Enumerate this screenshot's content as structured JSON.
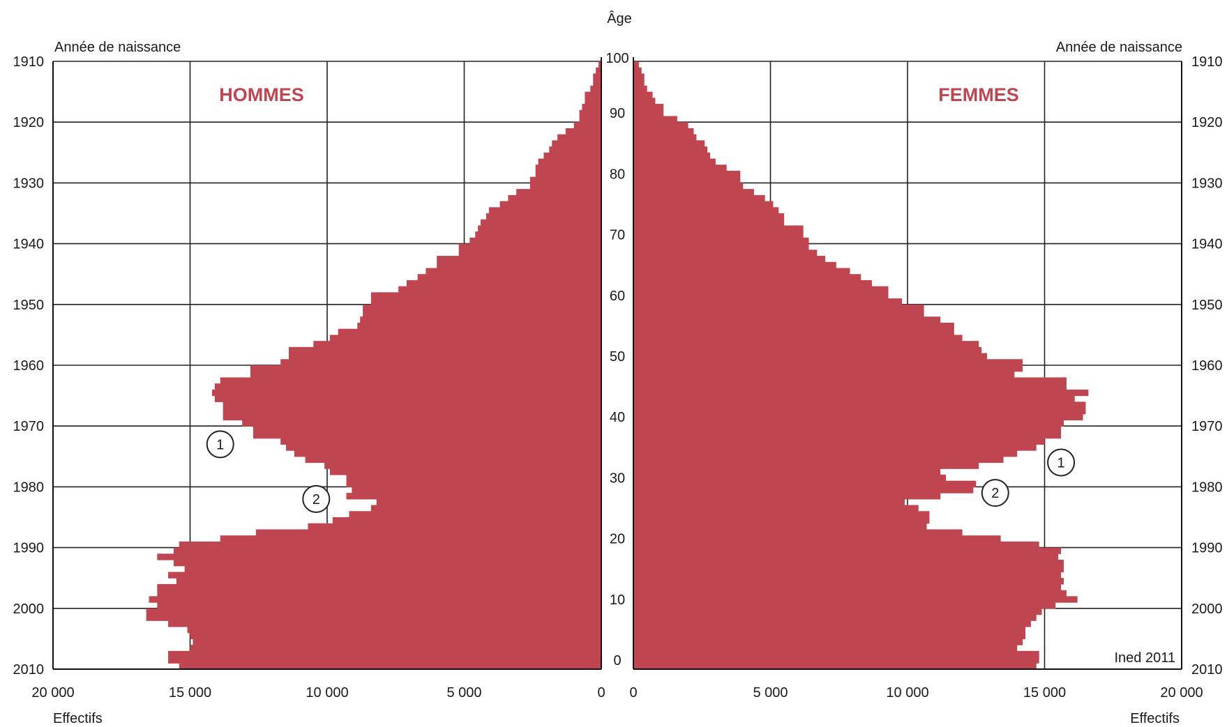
{
  "chart_data": {
    "type": "bar",
    "subtype": "population-pyramid",
    "age_label": "Âge",
    "birth_year_label": "Année de naissance",
    "count_label": "Effectifs",
    "source": "Ined 2011",
    "color": "#bf4650",
    "age_range": [
      0,
      100
    ],
    "count_range": [
      0,
      20000
    ],
    "grid": true,
    "age_ticks": [
      "0",
      "10",
      "20",
      "30",
      "40",
      "50",
      "60",
      "70",
      "80",
      "90",
      "100"
    ],
    "year_ticks": [
      "1910",
      "1920",
      "1930",
      "1940",
      "1950",
      "1960",
      "1970",
      "1980",
      "1990",
      "2000",
      "2010"
    ],
    "male_ticks": [
      "20 000",
      "15 000",
      "10 000",
      "5 000",
      "0"
    ],
    "female_ticks": [
      "0",
      "5 000",
      "10 000",
      "15 000",
      "20 000"
    ],
    "ages": [
      0,
      1,
      2,
      3,
      4,
      5,
      6,
      7,
      8,
      9,
      10,
      11,
      12,
      13,
      14,
      15,
      16,
      17,
      18,
      19,
      20,
      21,
      22,
      23,
      24,
      25,
      26,
      27,
      28,
      29,
      30,
      31,
      32,
      33,
      34,
      35,
      36,
      37,
      38,
      39,
      40,
      41,
      42,
      43,
      44,
      45,
      46,
      47,
      48,
      49,
      50,
      51,
      52,
      53,
      54,
      55,
      56,
      57,
      58,
      59,
      60,
      61,
      62,
      63,
      64,
      65,
      66,
      67,
      68,
      69,
      70,
      71,
      72,
      73,
      74,
      75,
      76,
      77,
      78,
      79,
      80,
      81,
      82,
      83,
      84,
      85,
      86,
      87,
      88,
      89,
      90,
      91,
      92,
      93,
      94,
      95,
      96,
      97,
      98,
      99,
      100
    ],
    "series": [
      {
        "name": "HOMMES",
        "values": [
          15400,
          15800,
          15800,
          15000,
          14900,
          15000,
          15100,
          15800,
          16600,
          16600,
          16200,
          16500,
          16200,
          16200,
          15500,
          15800,
          15200,
          15600,
          16200,
          15600,
          15400,
          13900,
          12600,
          10700,
          9800,
          9200,
          8400,
          8200,
          9300,
          9100,
          9300,
          9300,
          9900,
          10100,
          10800,
          11200,
          11500,
          11700,
          12700,
          12700,
          13100,
          13800,
          13800,
          13800,
          14100,
          14200,
          14100,
          13900,
          12800,
          12800,
          11700,
          11400,
          11400,
          10500,
          9900,
          9600,
          8900,
          8800,
          8700,
          8700,
          8400,
          8400,
          7400,
          7100,
          6700,
          6400,
          6000,
          6000,
          5200,
          5200,
          4800,
          4600,
          4500,
          4400,
          4200,
          4100,
          3700,
          3400,
          3100,
          2600,
          2600,
          2400,
          2400,
          2300,
          2100,
          1900,
          1800,
          1600,
          1300,
          1000,
          800,
          800,
          700,
          600,
          600,
          400,
          300,
          300,
          200,
          100,
          0
        ]
      },
      {
        "name": "FEMMES",
        "values": [
          14700,
          14800,
          14800,
          14000,
          14200,
          14300,
          14300,
          14500,
          14700,
          14900,
          15400,
          16200,
          15800,
          15600,
          15700,
          15600,
          15700,
          15700,
          15500,
          15600,
          14800,
          13400,
          12000,
          10700,
          10800,
          10800,
          10400,
          9900,
          11200,
          12400,
          12500,
          11400,
          11200,
          12600,
          13500,
          14000,
          14700,
          15000,
          15600,
          15600,
          15700,
          16400,
          16500,
          16500,
          16100,
          16600,
          15800,
          15800,
          13900,
          14200,
          14200,
          12900,
          12700,
          12600,
          12000,
          11700,
          11700,
          11200,
          10600,
          10600,
          9800,
          9300,
          9300,
          8700,
          8300,
          7900,
          7400,
          7000,
          6700,
          6400,
          6400,
          6200,
          6200,
          5500,
          5500,
          5300,
          5100,
          4800,
          4400,
          4000,
          3900,
          3900,
          3400,
          3000,
          2800,
          2700,
          2600,
          2300,
          2200,
          2000,
          1600,
          1100,
          1100,
          800,
          700,
          500,
          400,
          400,
          300,
          200,
          0
        ]
      }
    ],
    "annotations": [
      {
        "text": "1",
        "series": "HOMMES",
        "age": 37,
        "count": 13900
      },
      {
        "text": "2",
        "series": "HOMMES",
        "age": 28,
        "count": 10400
      },
      {
        "text": "1",
        "series": "FEMMES",
        "age": 34,
        "count": 15600
      },
      {
        "text": "2",
        "series": "FEMMES",
        "age": 29,
        "count": 13200
      }
    ]
  }
}
